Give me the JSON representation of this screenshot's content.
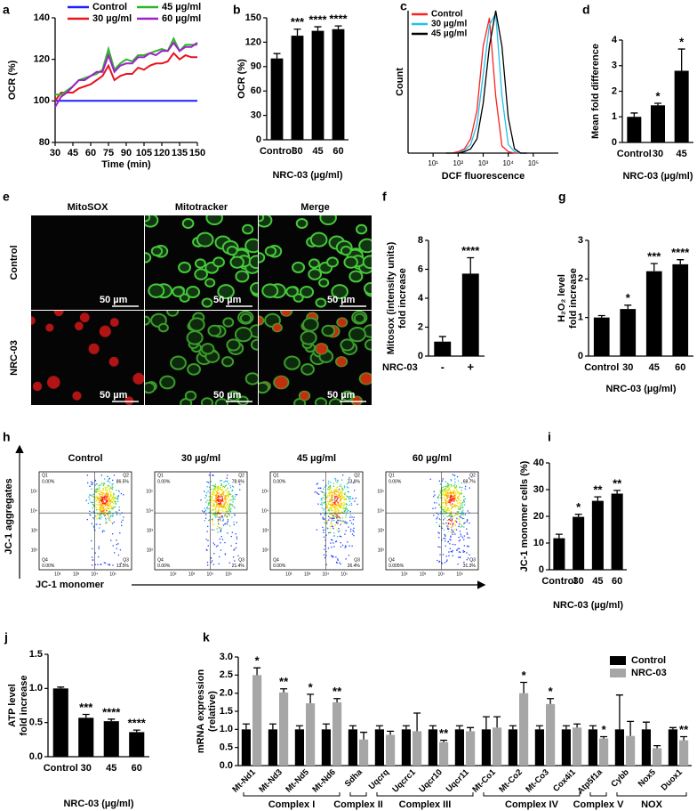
{
  "chart_data": [
    {
      "panel": "a",
      "type": "line",
      "x_label": "Time (min)",
      "y_label": "OCR (%)",
      "legend": "top",
      "x": [
        30,
        35,
        40,
        45,
        50,
        55,
        60,
        65,
        70,
        75,
        80,
        85,
        90,
        95,
        100,
        105,
        110,
        115,
        120,
        125,
        130,
        135,
        140,
        145,
        150
      ],
      "xlim": [
        30,
        150
      ],
      "xticks": [
        30,
        45,
        60,
        75,
        90,
        105,
        120,
        135,
        150
      ],
      "ylim": [
        80,
        140
      ],
      "yticks": [
        80,
        100,
        120,
        140
      ],
      "series": [
        {
          "name": "Control",
          "color": "#1f1fff",
          "values": [
            100,
            100,
            100,
            100,
            100,
            100,
            100,
            100,
            100,
            100,
            100,
            100,
            100,
            100,
            100,
            100,
            100,
            100,
            100,
            100,
            100,
            100,
            100,
            100,
            100
          ]
        },
        {
          "name": "30 µg/ml",
          "color": "#e8141e",
          "values": [
            100,
            104,
            104,
            104,
            106,
            107,
            108,
            110,
            112,
            117,
            110,
            112,
            113,
            113,
            116,
            115,
            117,
            118,
            118,
            119,
            123,
            120,
            122,
            121,
            121
          ]
        },
        {
          "name": "45 µg/ml",
          "color": "#2db52d",
          "values": [
            103,
            103,
            105,
            107,
            110,
            111,
            112,
            113,
            115,
            125,
            115,
            118,
            120,
            119,
            122,
            122,
            123,
            124,
            125,
            124,
            130,
            124,
            127,
            127,
            127
          ]
        },
        {
          "name": "60 µg/ml",
          "color": "#a020c8",
          "values": [
            97,
            102,
            104,
            107,
            110,
            110,
            112,
            114,
            114,
            122,
            114,
            117,
            118,
            118,
            121,
            121,
            123,
            122,
            124,
            124,
            128,
            124,
            126,
            126,
            128
          ]
        }
      ]
    },
    {
      "panel": "b",
      "type": "bar",
      "x_label": "NRC-03 (µg/ml)",
      "y_label": "OCR (%)",
      "color": "#000000",
      "categories": [
        "Control",
        "30",
        "45",
        "60"
      ],
      "values": [
        100,
        128,
        134,
        136
      ],
      "errors": [
        6,
        8,
        5,
        4
      ],
      "annotations": [
        null,
        "***",
        "****",
        "****"
      ],
      "ylim": [
        0,
        150
      ],
      "yticks": [
        0,
        30,
        60,
        90,
        120,
        150
      ]
    },
    {
      "panel": "c",
      "type": "line",
      "xscale": "log",
      "x_label": "DCF fluorescence",
      "y_label": "Count",
      "legend": "top-left",
      "x": [
        32,
        56,
        100,
        178,
        316,
        562,
        1000,
        1778,
        3162,
        5623,
        10000,
        17783,
        31623,
        56234
      ],
      "xlim": [
        1,
        1000000
      ],
      "xticks": [
        {
          "value": 10,
          "label": "10¹"
        },
        {
          "value": 100,
          "label": "10²"
        },
        {
          "value": 1000,
          "label": "10³"
        },
        {
          "value": 10000,
          "label": "10⁴"
        },
        {
          "value": 100000,
          "label": "10⁵"
        }
      ],
      "ylim": [
        0,
        100
      ],
      "series": [
        {
          "name": "Control",
          "color": "#ff2020",
          "values": [
            0,
            0,
            1,
            3,
            10,
            30,
            75,
            95,
            40,
            5,
            1,
            0,
            0,
            0
          ]
        },
        {
          "name": "30 µg/ml",
          "color": "#22c0e8",
          "values": [
            0,
            0,
            0,
            2,
            6,
            20,
            55,
            90,
            98,
            40,
            6,
            1,
            0,
            0
          ]
        },
        {
          "name": "45 µg/ml",
          "color": "#000000",
          "values": [
            0,
            0,
            0,
            1,
            3,
            10,
            35,
            75,
            100,
            75,
            25,
            3,
            0,
            0
          ]
        }
      ]
    },
    {
      "panel": "d",
      "type": "bar",
      "x_label": "NRC-03 (µg/ml)",
      "y_label": "Mean fold difference",
      "color": "#000000",
      "categories": [
        "Control",
        "30",
        "45"
      ],
      "values": [
        1.0,
        1.45,
        2.8
      ],
      "errors": [
        0.15,
        0.08,
        0.85
      ],
      "annotations": [
        null,
        "*",
        "*"
      ],
      "ylim": [
        0,
        4
      ],
      "yticks": [
        0,
        1,
        2,
        3,
        4
      ]
    },
    {
      "panel": "f",
      "type": "bar",
      "category_label": "NRC-03",
      "y_label": [
        "Mitosox (intensity units)",
        "fold increase"
      ],
      "color": "#000000",
      "categories": [
        "-",
        "+"
      ],
      "values": [
        1.0,
        5.7
      ],
      "errors": [
        0.35,
        1.1
      ],
      "annotations": [
        null,
        "****"
      ],
      "ylim": [
        0,
        8
      ],
      "yticks": [
        0,
        2,
        4,
        6,
        8
      ]
    },
    {
      "panel": "g",
      "type": "bar",
      "x_label": "NRC-03 (µg/ml)",
      "y_label": [
        "H₂O₂ level",
        "fold increase"
      ],
      "color": "#000000",
      "categories": [
        "Control",
        "30",
        "45",
        "60"
      ],
      "values": [
        1.0,
        1.22,
        2.2,
        2.38
      ],
      "errors": [
        0.05,
        0.1,
        0.2,
        0.12
      ],
      "annotations": [
        null,
        "*",
        "***",
        "****"
      ],
      "ylim": [
        0,
        3
      ],
      "yticks": [
        0,
        1,
        2,
        3
      ]
    },
    {
      "panel": "i",
      "type": "bar",
      "x_label": "NRC-03 (µg/ml)",
      "y_label": "JC-1 monomer cells (%)",
      "color": "#000000",
      "categories": [
        "Control",
        "30",
        "45",
        "60"
      ],
      "values": [
        11.8,
        19.8,
        25.8,
        28.5
      ],
      "errors": [
        1.5,
        1,
        1.5,
        1.2
      ],
      "annotations": [
        null,
        "*",
        "**",
        "**"
      ],
      "ylim": [
        0,
        40
      ],
      "yticks": [
        0,
        10,
        20,
        30,
        40
      ]
    },
    {
      "panel": "j",
      "type": "bar",
      "x_label": "NRC-03 (µg/ml)",
      "y_label": [
        "ATP level",
        "fold increase"
      ],
      "color": "#000000",
      "categories": [
        "Control",
        "30",
        "45",
        "60"
      ],
      "values": [
        1.0,
        0.57,
        0.52,
        0.36
      ],
      "errors": [
        0.02,
        0.05,
        0.03,
        0.03
      ],
      "annotations": [
        null,
        "***",
        "****",
        "****"
      ],
      "ylim": [
        0,
        1.5
      ],
      "yticks": [
        {
          "value": 0,
          "label": "0.0"
        },
        0.5,
        {
          "value": 1,
          "label": "1.0"
        },
        1.5
      ]
    },
    {
      "panel": "k",
      "type": "bar",
      "y_label": [
        "mRNA expression",
        "(relative)"
      ],
      "legend": "top-right",
      "groups": [
        {
          "label": "Complex I",
          "color": "#000000",
          "categories": [
            "Mt-Nd1",
            "Mt-Nd3",
            "Mt-Nd5",
            "Mt-Nd6"
          ]
        },
        {
          "label": "Complex II",
          "color": "#1aa04a",
          "categories": [
            "Sdha"
          ]
        },
        {
          "label": "Complex III",
          "color": "#c0143c",
          "categories": [
            "Uqcrq",
            "Uqcrc1",
            "Uqcr10",
            "Uqcr11"
          ]
        },
        {
          "label": "Complex IV",
          "color": "#1a9bd7",
          "categories": [
            "Mt-Co1",
            "Mt-Co2",
            "Mt-Co3",
            "Cox4i1"
          ]
        },
        {
          "label": "Complex V",
          "color": "#d6168e",
          "categories": [
            "Atp5f1a"
          ]
        },
        {
          "label": "NOX",
          "color": "#f26522",
          "categories": [
            "Cybb",
            "Nox5",
            "Duox1"
          ]
        }
      ],
      "series": [
        {
          "name": "Control",
          "color": "#000000",
          "values": [
            1,
            1,
            1,
            1,
            1,
            1,
            1,
            1,
            1,
            1,
            1,
            1,
            1,
            1,
            1,
            1,
            1
          ],
          "errors": [
            0.15,
            0.15,
            0.1,
            0.15,
            0.1,
            0.1,
            0.1,
            0.1,
            0.1,
            0.35,
            0.1,
            0.1,
            0.1,
            0.1,
            0.95,
            0.2,
            0.05
          ],
          "annotations": [
            null,
            null,
            null,
            null,
            null,
            null,
            null,
            null,
            null,
            null,
            null,
            null,
            null,
            null,
            null,
            null,
            null
          ]
        },
        {
          "name": "NRC-03",
          "color": "#a6a6a6",
          "values": [
            2.5,
            2.02,
            1.72,
            1.75,
            0.72,
            0.85,
            0.95,
            0.65,
            0.95,
            1.05,
            2.0,
            1.7,
            1.05,
            0.75,
            0.82,
            0.48,
            0.7
          ],
          "errors": [
            0.2,
            0.1,
            0.25,
            0.1,
            0.2,
            0.1,
            0.5,
            0.05,
            0.1,
            0.3,
            0.3,
            0.15,
            0.1,
            0.05,
            0.4,
            0.07,
            0.1
          ],
          "annotations": [
            "*",
            "**",
            "*",
            "**",
            null,
            null,
            null,
            "**",
            null,
            null,
            "*",
            "*",
            null,
            "*",
            null,
            null,
            "**"
          ]
        }
      ],
      "ylim": [
        0,
        3
      ],
      "yticks": [
        {
          "value": 0,
          "label": "0.0"
        },
        0.5,
        {
          "value": 1,
          "label": "1.0"
        },
        1.5,
        {
          "value": 2,
          "label": "2.0"
        },
        2.5,
        {
          "value": 3,
          "label": "3.0"
        }
      ]
    }
  ],
  "micrographs": {
    "panel": "e",
    "columns": [
      "MitoSOX",
      "Mitotracker",
      "Merge"
    ],
    "rows": [
      "Control",
      "NRC-03"
    ],
    "scale_bar": "50 µm"
  },
  "flow_cytometry": {
    "panel": "h",
    "y_label": "JC-1 aggregates",
    "x_label": "JC-1 monomer",
    "ticks": [
      "10²",
      "10³",
      "10⁴",
      "10⁵"
    ],
    "plots": [
      {
        "title": "Control",
        "quadrants": [
          {
            "name": "Q1",
            "value": "0.00%"
          },
          {
            "name": "Q2",
            "value": "86.5%"
          },
          {
            "name": "Q4",
            "value": "0.00%"
          },
          {
            "name": "Q3",
            "value": "13.5%"
          }
        ]
      },
      {
        "title": "30 µg/ml",
        "quadrants": [
          {
            "name": "Q1",
            "value": "0.00%"
          },
          {
            "name": "Q2",
            "value": "78.6%"
          },
          {
            "name": "Q4",
            "value": "0.00%"
          },
          {
            "name": "Q3",
            "value": "21.4%"
          }
        ]
      },
      {
        "title": "45 µg/ml",
        "quadrants": [
          {
            "name": "Q1",
            "value": "0.00%"
          },
          {
            "name": "Q2",
            "value": "73.6%"
          },
          {
            "name": "Q4",
            "value": "0.00%"
          },
          {
            "name": "Q3",
            "value": "26.4%"
          }
        ]
      },
      {
        "title": "60 µg/ml",
        "quadrants": [
          {
            "name": "Q1",
            "value": "0.00%"
          },
          {
            "name": "Q2",
            "value": "68.7%"
          },
          {
            "name": "Q4",
            "value": "0.005%"
          },
          {
            "name": "Q3",
            "value": "31.3%"
          }
        ]
      }
    ]
  }
}
